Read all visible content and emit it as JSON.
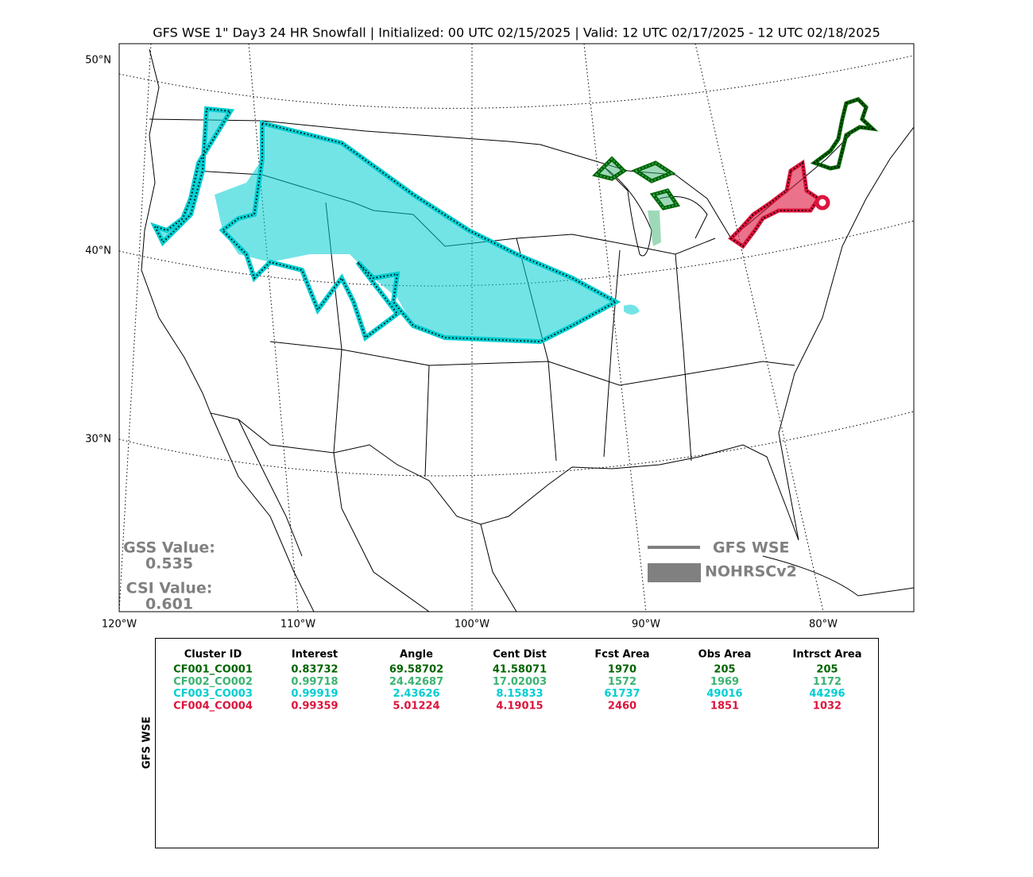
{
  "title": "GFS WSE 1\" Day3 24 HR Snowfall | Initialized: 00 UTC 02/15/2025 | Valid: 12 UTC 02/17/2025 - 12 UTC 02/18/2025",
  "map": {
    "lat_labels": [
      "50°N",
      "40°N",
      "30°N"
    ],
    "lon_labels": [
      "120°W",
      "110°W",
      "100°W",
      "90°W",
      "80°W"
    ],
    "stats": {
      "gss_label": "GSS Value:",
      "gss_value": "0.535",
      "csi_label": "CSI Value:",
      "csi_value": "0.601"
    },
    "legend": {
      "forecast": "GFS WSE",
      "observed": "NOHRSCv2"
    }
  },
  "table": {
    "side_label": "GFS WSE",
    "header": [
      "Cluster ID",
      "Interest",
      "Angle",
      "Cent Dist",
      "Fcst Area",
      "Obs Area",
      "Intrsct Area"
    ],
    "rows": [
      {
        "color": "#006400",
        "cells": [
          "CF001_CO001",
          "0.83732",
          "69.58702",
          "41.58071",
          "1970",
          "205",
          "205"
        ]
      },
      {
        "color": "#3cb371",
        "cells": [
          "CF002_CO002",
          "0.99718",
          "24.42687",
          "17.02003",
          "1572",
          "1969",
          "1172"
        ]
      },
      {
        "color": "#00ced1",
        "cells": [
          "CF003_CO003",
          "0.99919",
          "2.43626",
          "8.15833",
          "61737",
          "49016",
          "44296"
        ]
      },
      {
        "color": "#dc143c",
        "cells": [
          "CF004_CO004",
          "0.99359",
          "5.01224",
          "4.19015",
          "2460",
          "1851",
          "1032"
        ]
      }
    ]
  }
}
